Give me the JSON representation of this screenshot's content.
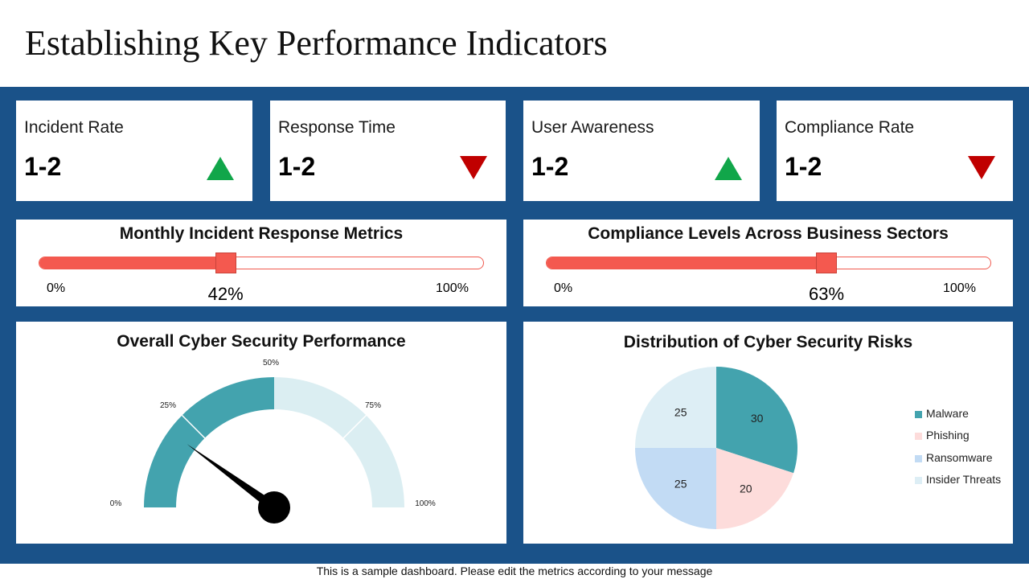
{
  "title": "Establishing Key Performance Indicators",
  "kpis": [
    {
      "label": "Incident Rate",
      "value": "1-2",
      "trend": "up",
      "trend_icon": "triangle-up-icon",
      "color": "#11a64a"
    },
    {
      "label": "Response Time",
      "value": "1-2",
      "trend": "down",
      "trend_icon": "triangle-down-icon",
      "color": "#c00000"
    },
    {
      "label": "User Awareness",
      "value": "1-2",
      "trend": "up",
      "trend_icon": "triangle-up-icon",
      "color": "#11a64a"
    },
    {
      "label": "Compliance Rate",
      "value": "1-2",
      "trend": "down",
      "trend_icon": "triangle-down-icon",
      "color": "#c00000"
    }
  ],
  "sliders": [
    {
      "title": "Monthly Incident Response Metrics",
      "min_label": "0%",
      "max_label": "100%",
      "value": 42,
      "value_label": "42%"
    },
    {
      "title": "Compliance Levels Across Business Sectors",
      "min_label": "0%",
      "max_label": "100%",
      "value": 63,
      "value_label": "63%"
    }
  ],
  "gauge": {
    "title": "Overall Cyber Security Performance",
    "ticks": [
      "0%",
      "25%",
      "50%",
      "75%",
      "100%"
    ],
    "filled_fraction": 0.5,
    "needle_fraction": 0.2,
    "filled_color": "#43a3ae",
    "empty_color": "#dbeef2"
  },
  "chart_data": {
    "type": "pie",
    "title": "Distribution of Cyber Security Risks",
    "categories": [
      "Malware",
      "Phishing",
      "Ransomware",
      "Insider Threats"
    ],
    "values": [
      30,
      20,
      25,
      25
    ],
    "value_labels": [
      "30",
      "20",
      "25",
      "25"
    ],
    "colors": [
      "#43a3ae",
      "#fddcdb",
      "#c2dbf4",
      "#ddeef5"
    ],
    "legend": "right"
  },
  "colors": {
    "band": "#1a5289",
    "slider_fill": "#f4594f"
  },
  "footer": "This is a sample dashboard. Please edit the metrics according to your message"
}
